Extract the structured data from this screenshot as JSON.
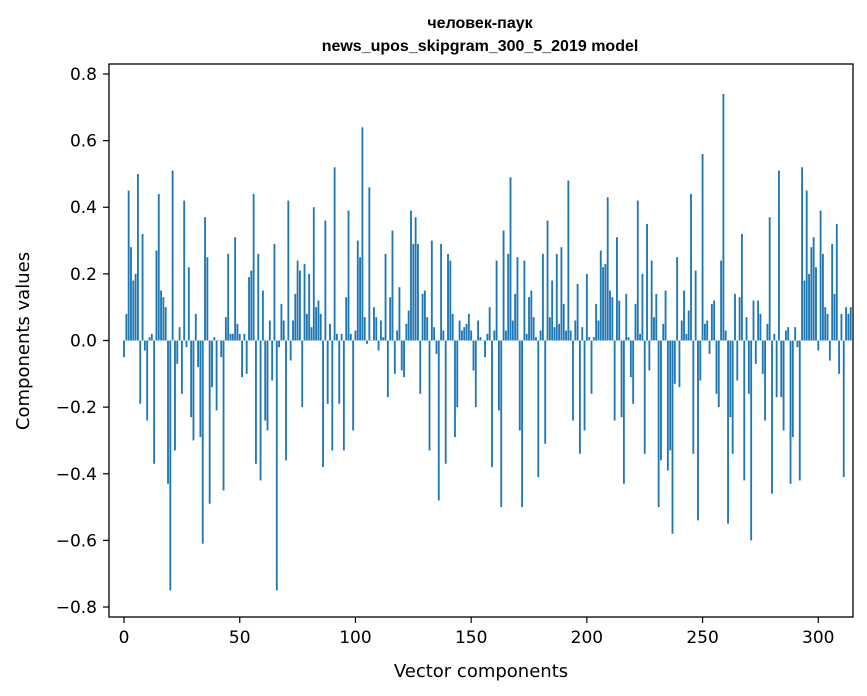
{
  "chart_data": {
    "type": "bar",
    "title": "человек-паук",
    "subtitle": "news_upos_skipgram_300_5_2019 model",
    "xlabel": "Vector components",
    "ylabel": "Components values",
    "xlim": [
      -6.5,
      315
    ],
    "ylim": [
      -0.83,
      0.83
    ],
    "xticks": [
      0,
      50,
      100,
      150,
      200,
      250,
      300
    ],
    "xtick_labels": [
      "0",
      "50",
      "100",
      "150",
      "200",
      "250",
      "300"
    ],
    "yticks": [
      -0.8,
      -0.6,
      -0.4,
      -0.2,
      0.0,
      0.2,
      0.4,
      0.6,
      0.8
    ],
    "ytick_labels": [
      "−0.8",
      "−0.6",
      "−0.4",
      "−0.2",
      "0.0",
      "0.2",
      "0.4",
      "0.6",
      "0.8"
    ],
    "bar_color": "#1f77b4",
    "grid": false,
    "values": [
      -0.05,
      0.08,
      0.45,
      0.28,
      0.18,
      0.2,
      0.5,
      -0.19,
      0.32,
      -0.03,
      -0.24,
      0.01,
      0.02,
      -0.37,
      0.27,
      0.44,
      0.15,
      0.13,
      0.1,
      -0.43,
      -0.75,
      0.51,
      -0.33,
      -0.07,
      0.04,
      -0.16,
      0.42,
      -0.02,
      0.22,
      -0.23,
      -0.3,
      0.08,
      -0.08,
      -0.29,
      -0.61,
      0.37,
      0.25,
      -0.49,
      -0.14,
      0.01,
      -0.21,
      0.0,
      -0.05,
      -0.45,
      0.07,
      0.26,
      0.02,
      0.02,
      0.31,
      0.05,
      0.02,
      -0.11,
      0.02,
      -0.1,
      0.19,
      0.21,
      0.44,
      -0.37,
      0.26,
      -0.42,
      0.15,
      -0.24,
      -0.27,
      0.06,
      -0.12,
      0.29,
      -0.75,
      -0.02,
      0.11,
      0.06,
      -0.36,
      0.42,
      -0.06,
      0.06,
      0.14,
      0.24,
      0.21,
      -0.2,
      0.23,
      0.08,
      0.2,
      0.04,
      0.4,
      0.1,
      0.12,
      0.08,
      -0.38,
      0.36,
      -0.19,
      0.05,
      -0.33,
      0.52,
      0.02,
      -0.19,
      0.02,
      -0.33,
      0.13,
      0.39,
      0.02,
      -0.27,
      0.03,
      0.3,
      0.25,
      0.64,
      0.07,
      -0.01,
      0.46,
      0.0,
      0.1,
      0.07,
      -0.03,
      0.06,
      0.01,
      0.26,
      -0.17,
      0.13,
      0.33,
      -0.1,
      0.03,
      0.16,
      -0.09,
      -0.11,
      0.05,
      0.09,
      0.39,
      0.29,
      0.37,
      0.29,
      -0.16,
      0.14,
      0.15,
      0.07,
      -0.33,
      0.3,
      0.04,
      -0.04,
      -0.48,
      0.29,
      0.03,
      -0.37,
      0.26,
      0.24,
      0.08,
      -0.29,
      -0.2,
      0.06,
      0.03,
      0.04,
      0.05,
      0.08,
      0.03,
      -0.09,
      -0.2,
      0.06,
      0.01,
      0.0,
      -0.05,
      0.02,
      0.1,
      -0.38,
      0.03,
      0.24,
      -0.21,
      -0.5,
      0.33,
      0.03,
      0.26,
      0.49,
      0.06,
      0.14,
      0.25,
      -0.27,
      -0.5,
      0.24,
      0.02,
      0.13,
      0.15,
      0.07,
      0.01,
      -0.41,
      0.03,
      0.26,
      -0.31,
      0.36,
      0.07,
      0.18,
      0.04,
      0.26,
      0.05,
      0.28,
      0.11,
      0.03,
      0.48,
      0.03,
      -0.24,
      0.06,
      0.17,
      -0.34,
      0.04,
      -0.27,
      0.2,
      0.01,
      -0.16,
      0.01,
      0.11,
      0.06,
      0.27,
      0.22,
      0.23,
      0.43,
      0.15,
      0.13,
      -0.24,
      0.31,
      0.12,
      -0.23,
      -0.43,
      0.14,
      0.01,
      -0.11,
      -0.19,
      0.11,
      0.42,
      0.02,
      0.2,
      -0.34,
      0.35,
      -0.09,
      0.24,
      0.07,
      0.14,
      -0.5,
      -0.36,
      0.05,
      0.15,
      -0.39,
      -0.33,
      -0.58,
      -0.13,
      0.25,
      -0.14,
      0.06,
      0.15,
      0.02,
      0.09,
      0.44,
      -0.34,
      0.21,
      -0.54,
      -0.12,
      0.56,
      0.05,
      0.06,
      -0.04,
      0.11,
      0.12,
      -0.16,
      -0.2,
      0.24,
      0.74,
      0.03,
      -0.55,
      -0.23,
      -0.34,
      0.14,
      -0.12,
      0.13,
      0.32,
      -0.42,
      0.07,
      -0.16,
      -0.6,
      0.12,
      -0.07,
      0.12,
      0.08,
      -0.1,
      -0.24,
      0.05,
      0.37,
      -0.46,
      0.02,
      -0.17,
      0.51,
      -0.17,
      -0.27,
      0.03,
      0.04,
      -0.43,
      -0.29,
      0.04,
      -0.02,
      -0.42,
      0.52,
      0.18,
      0.45,
      0.2,
      0.28,
      0.31,
      0.22,
      -0.03,
      0.39,
      0.26,
      0.1,
      0.08,
      -0.06,
      0.29,
      0.14,
      0.35,
      -0.1,
      0.08,
      -0.41,
      0.1,
      0.08,
      0.1
    ]
  }
}
